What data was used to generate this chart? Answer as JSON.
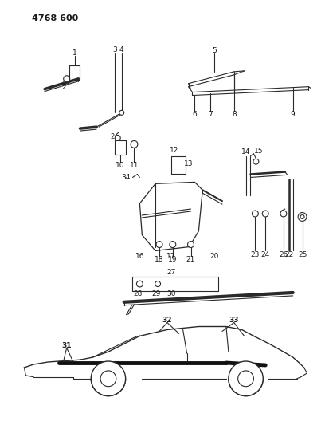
{
  "title": "4768 600",
  "bg_color": "#ffffff",
  "line_color": "#2a2a2a",
  "text_color": "#1a1a1a",
  "figsize": [
    4.08,
    5.33
  ],
  "dpi": 100
}
